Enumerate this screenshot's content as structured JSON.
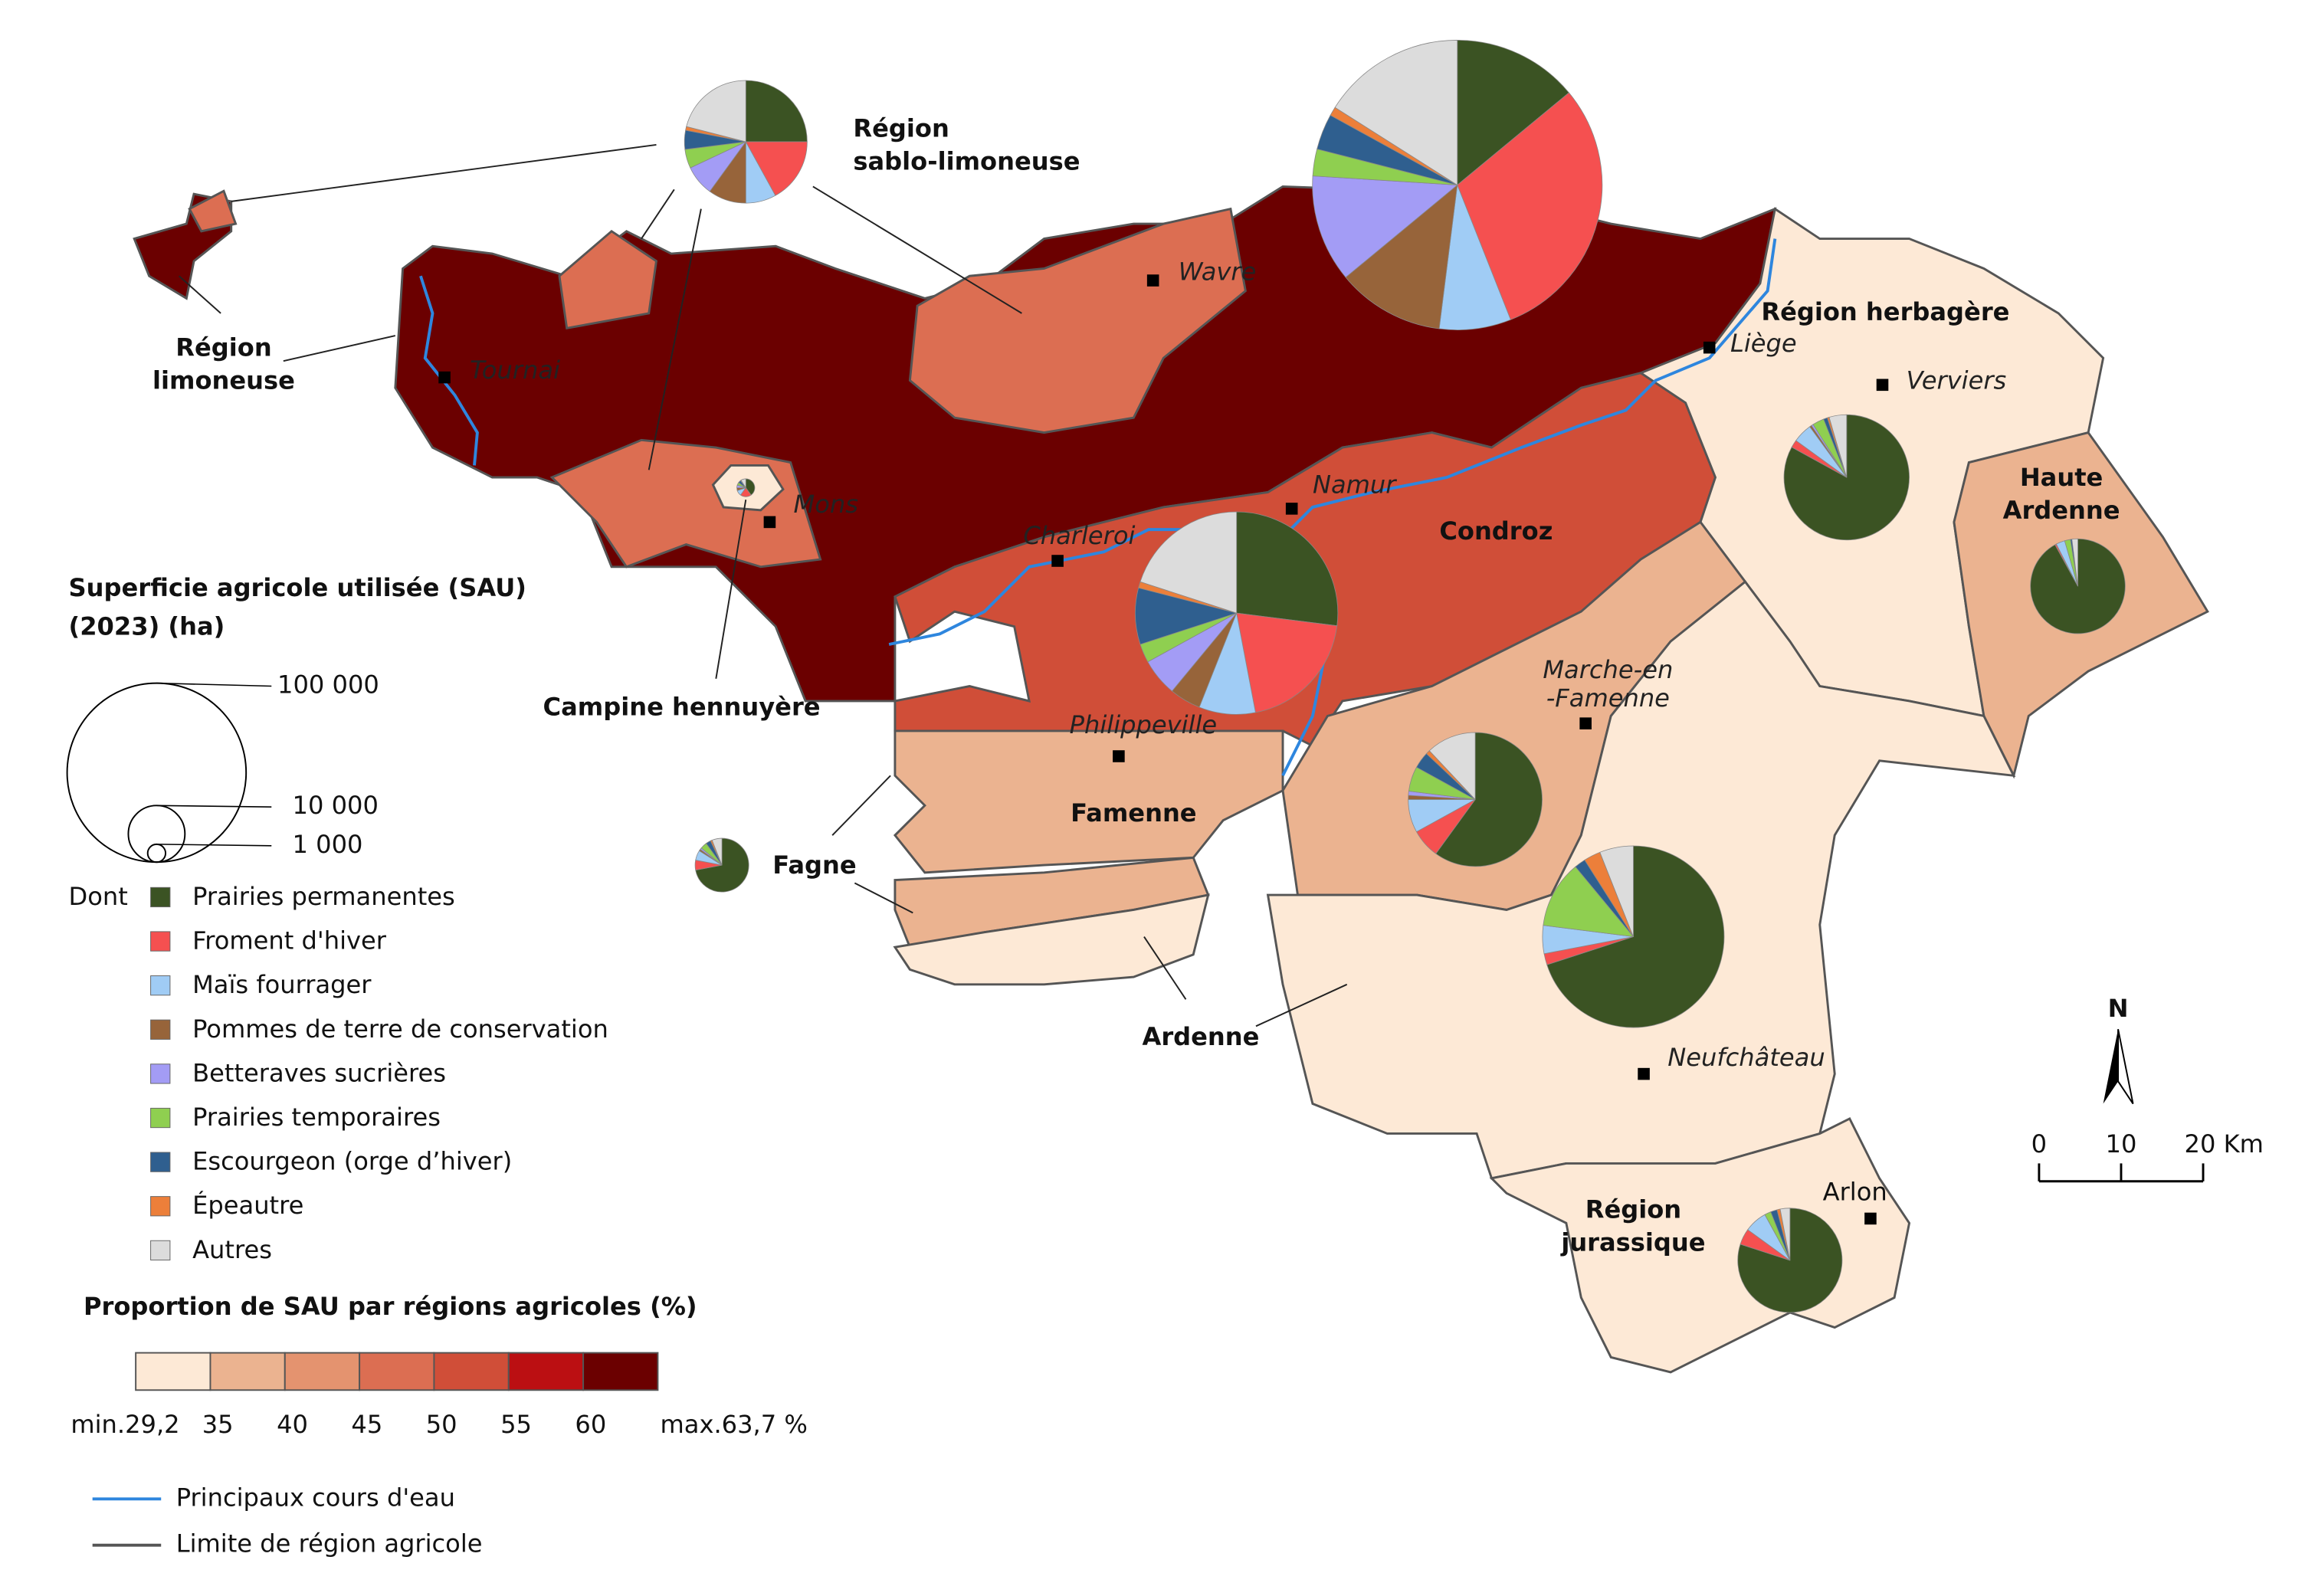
{
  "legend_size": {
    "title_lines": [
      "Superficie agricole utilisée (SAU)",
      "(2023) (ha)"
    ],
    "ticks": [
      {
        "value": 100000,
        "label": "100 000"
      },
      {
        "value": 10000,
        "label": "10 000"
      },
      {
        "value": 1000,
        "label": "1 000"
      }
    ]
  },
  "legend_crops": {
    "prefix": "Dont",
    "items": [
      {
        "name": "Prairies permanentes",
        "color": "#3b5323"
      },
      {
        "name": "Froment d'hiver",
        "color": "#f55050"
      },
      {
        "name": "Maïs fourrager",
        "color": "#a0ccf5"
      },
      {
        "name": "Pommes de terre de conservation",
        "color": "#97643a"
      },
      {
        "name": "Betteraves sucrières",
        "color": "#a39cf5"
      },
      {
        "name": "Prairies temporaires",
        "color": "#8fcf50"
      },
      {
        "name": "Escourgeon (orge d’hiver)",
        "color": "#2f5f8f"
      },
      {
        "name": "Épeautre",
        "color": "#ec7f3a"
      },
      {
        "name": "Autres",
        "color": "#dcdcdc"
      }
    ]
  },
  "legend_share": {
    "title": "Proportion de SAU par régions agricoles (%)",
    "bounds": [
      {
        "value": 29.2,
        "label": "min.29,2"
      },
      35,
      40,
      45,
      50,
      55,
      60,
      {
        "value": 63.7,
        "label": "max.63,7 %"
      }
    ],
    "colors": [
      "#fde9d6",
      "#ebb390",
      "#e4936f",
      "#dc6e52",
      "#d04e38",
      "#bb0f12",
      "#6b0000"
    ]
  },
  "legend_lines": [
    {
      "name": "Principaux cours d'eau",
      "color": "#2e86de"
    },
    {
      "name": "Limite de région agricole",
      "color": "#555555"
    }
  ],
  "regions": [
    {
      "name_lines": [
        "Région",
        "limoneuse"
      ],
      "share": 62,
      "sau": 262000,
      "values": [
        14,
        30,
        8,
        12,
        12,
        3,
        4,
        1,
        16
      ]
    },
    {
      "name_lines": [
        "Région",
        "sablo-limoneuse"
      ],
      "share": 47,
      "sau": 47000,
      "values": [
        25,
        17,
        8,
        10,
        8,
        5,
        5,
        1,
        21
      ]
    },
    {
      "name_lines": [
        "Campine hennuyère"
      ],
      "share": 32,
      "sau": 1000,
      "values": [
        40,
        20,
        10,
        5,
        5,
        5,
        5,
        1,
        9
      ]
    },
    {
      "name_lines": [
        "Condroz"
      ],
      "share": 52,
      "sau": 128000,
      "values": [
        27,
        20,
        9,
        5,
        6,
        3,
        9,
        1,
        20
      ]
    },
    {
      "name_lines": [
        "Région herbagère"
      ],
      "share": 32,
      "sau": 49000,
      "values": [
        83,
        2,
        5,
        0.5,
        0.5,
        3,
        1,
        0.5,
        4.5
      ]
    },
    {
      "name_lines": [
        "Haute",
        "Ardenne"
      ],
      "share": 38,
      "sau": 28000,
      "values": [
        92,
        0.5,
        3,
        0,
        0,
        2,
        0.5,
        0,
        2
      ]
    },
    {
      "name_lines": [
        "Famenne"
      ],
      "share": 38,
      "sau": 56000,
      "values": [
        60,
        7,
        8,
        1,
        1,
        6,
        4,
        1,
        12
      ]
    },
    {
      "name_lines": [
        "Fagne"
      ],
      "share": 38,
      "sau": 9000,
      "values": [
        72,
        6,
        6,
        1,
        1,
        4,
        3,
        1,
        6
      ]
    },
    {
      "name_lines": [
        "Ardenne"
      ],
      "share": 32,
      "sau": 103000,
      "values": [
        70,
        2,
        5,
        0,
        0,
        12,
        2,
        3,
        6
      ]
    },
    {
      "name_lines": [
        "Région",
        "jurassique"
      ],
      "share": 32,
      "sau": 34000,
      "values": [
        80,
        5,
        7,
        0,
        0,
        2,
        2,
        1,
        3
      ]
    }
  ],
  "cities": [
    {
      "name_lines": [
        "Tournai"
      ]
    },
    {
      "name_lines": [
        "Wavre"
      ]
    },
    {
      "name_lines": [
        "Liège"
      ]
    },
    {
      "name_lines": [
        "Verviers"
      ]
    },
    {
      "name_lines": [
        "Mons"
      ]
    },
    {
      "name_lines": [
        "Namur"
      ]
    },
    {
      "name_lines": [
        "Charleroi"
      ]
    },
    {
      "name_lines": [
        "Philippeville"
      ]
    },
    {
      "name_lines": [
        "Marche-en",
        "-Famenne"
      ]
    },
    {
      "name_lines": [
        "Neufchâteau"
      ]
    },
    {
      "name_lines": [
        "Arlon"
      ]
    }
  ],
  "scale": {
    "north": "N",
    "ticks": [
      0,
      10,
      {
        "value": 20,
        "label": "20 Km"
      }
    ]
  }
}
